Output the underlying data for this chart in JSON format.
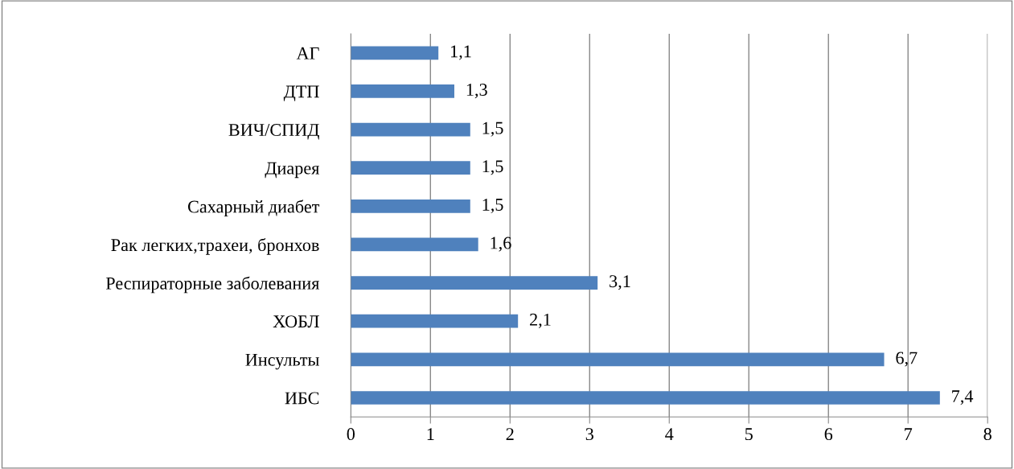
{
  "chart_data": {
    "type": "bar",
    "orientation": "horizontal",
    "categories": [
      "АГ",
      "ДТП",
      "ВИЧ/СПИД",
      "Диарея",
      "Сахарный диабет",
      "Рак легких,трахеи, бронхов",
      "Респираторные заболевания",
      "ХОБЛ",
      "Инсульты",
      "ИБС"
    ],
    "values": [
      1.1,
      1.3,
      1.5,
      1.5,
      1.5,
      1.6,
      3.1,
      2.1,
      6.7,
      7.4
    ],
    "value_labels": [
      "1,1",
      "1,3",
      "1,5",
      "1,5",
      "1,5",
      "1,6",
      "3,1",
      "2,1",
      "6,7",
      "7,4"
    ],
    "color": "#4f81bd",
    "xlim": [
      0,
      8
    ],
    "xticks": [
      0,
      1,
      2,
      3,
      4,
      5,
      6,
      7,
      8
    ],
    "grid": "x",
    "legend": false
  }
}
